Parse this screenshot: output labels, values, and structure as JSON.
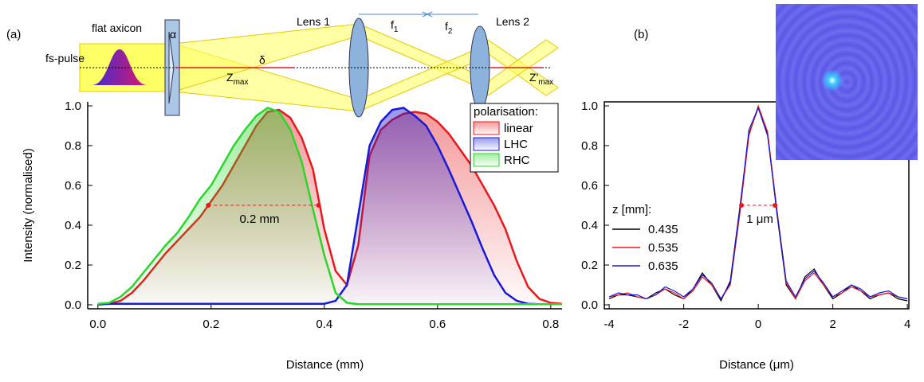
{
  "chart_data": [
    {
      "type": "line",
      "panel_label": "(a)",
      "x_label": "Distance (mm)",
      "y_label": "Intensity (normalised)",
      "x": [
        0,
        0.02,
        0.04,
        0.06,
        0.08,
        0.1,
        0.12,
        0.14,
        0.16,
        0.18,
        0.2,
        0.22,
        0.24,
        0.26,
        0.28,
        0.3,
        0.32,
        0.34,
        0.36,
        0.38,
        0.4,
        0.42,
        0.44,
        0.46,
        0.48,
        0.5,
        0.52,
        0.54,
        0.56,
        0.58,
        0.6,
        0.62,
        0.64,
        0.66,
        0.68,
        0.7,
        0.72,
        0.74,
        0.76,
        0.78,
        0.8,
        0.82
      ],
      "series": [
        {
          "name": "linear",
          "color": "#e8191c",
          "values": [
            0,
            0.005,
            0.02,
            0.06,
            0.12,
            0.19,
            0.26,
            0.32,
            0.38,
            0.44,
            0.52,
            0.6,
            0.7,
            0.8,
            0.9,
            0.97,
            0.98,
            0.94,
            0.84,
            0.68,
            0.38,
            0.17,
            0.1,
            0.3,
            0.75,
            0.88,
            0.93,
            0.96,
            0.97,
            0.96,
            0.92,
            0.86,
            0.78,
            0.7,
            0.6,
            0.5,
            0.38,
            0.22,
            0.09,
            0.03,
            0.01,
            0.005
          ]
        },
        {
          "name": "LHC",
          "color": "#1a1ad6",
          "values": [
            0.005,
            0.005,
            0.005,
            0.005,
            0.005,
            0.005,
            0.005,
            0.005,
            0.005,
            0.005,
            0.005,
            0.005,
            0.005,
            0.005,
            0.005,
            0.005,
            0.005,
            0.005,
            0.005,
            0.005,
            0.005,
            0.02,
            0.1,
            0.45,
            0.8,
            0.92,
            0.98,
            0.99,
            0.95,
            0.9,
            0.8,
            0.68,
            0.55,
            0.42,
            0.28,
            0.15,
            0.06,
            0.02,
            0.005,
            0.003,
            0.003,
            0.003
          ]
        },
        {
          "name": "RHC",
          "color": "#2ad62a",
          "values": [
            0.005,
            0.01,
            0.04,
            0.09,
            0.16,
            0.23,
            0.3,
            0.36,
            0.44,
            0.53,
            0.6,
            0.7,
            0.8,
            0.88,
            0.95,
            0.99,
            0.97,
            0.88,
            0.72,
            0.48,
            0.25,
            0.06,
            0.01,
            0.003,
            0.003,
            0.003,
            0.003,
            0.003,
            0.003,
            0.003,
            0.003,
            0.003,
            0.003,
            0.003,
            0.003,
            0.003,
            0.003,
            0.003,
            0.003,
            0.003,
            0.003,
            0.003
          ]
        }
      ],
      "fill": true,
      "frame": false,
      "xlim": [
        -0.018,
        0.82
      ],
      "xticks": [
        {
          "value": 0,
          "label": "0.0"
        },
        0.2,
        0.4,
        0.6,
        0.8
      ],
      "ylim": [
        -0.02,
        1.02
      ],
      "yticks": [
        {
          "value": 0,
          "label": "0.0"
        },
        0.2,
        0.4,
        0.6,
        0.8,
        {
          "value": 1,
          "label": "1.0"
        }
      ],
      "legend": {
        "title": "polarisation:",
        "position": "upper right"
      },
      "annotations": [
        {
          "text": "0.2 mm",
          "from": 0.195,
          "to": 0.39,
          "y": 0.5
        }
      ]
    },
    {
      "type": "line",
      "panel_label": "(b)",
      "x_label": "Distance (μm)",
      "x": [
        -4,
        -3.75,
        -3.5,
        -3.25,
        -3,
        -2.75,
        -2.5,
        -2.25,
        -2,
        -1.75,
        -1.5,
        -1.25,
        -1,
        -0.75,
        -0.5,
        -0.25,
        0,
        0.25,
        0.5,
        0.75,
        1,
        1.25,
        1.5,
        1.75,
        2,
        2.25,
        2.5,
        2.75,
        3,
        3.25,
        3.5,
        3.75,
        4
      ],
      "series": [
        {
          "name": "0.435",
          "color": "#000000",
          "values": [
            0.03,
            0.05,
            0.05,
            0.04,
            0.03,
            0.06,
            0.08,
            0.05,
            0.03,
            0.08,
            0.16,
            0.1,
            0.02,
            0.12,
            0.48,
            0.86,
            0.99,
            0.86,
            0.46,
            0.1,
            0.03,
            0.14,
            0.18,
            0.1,
            0.03,
            0.06,
            0.1,
            0.07,
            0.03,
            0.05,
            0.06,
            0.03,
            0.02
          ]
        },
        {
          "name": "0.535",
          "color": "#e8191c",
          "values": [
            0.04,
            0.05,
            0.06,
            0.04,
            0.03,
            0.05,
            0.08,
            0.06,
            0.03,
            0.07,
            0.14,
            0.1,
            0.03,
            0.1,
            0.45,
            0.85,
            1.0,
            0.87,
            0.48,
            0.11,
            0.03,
            0.12,
            0.16,
            0.1,
            0.04,
            0.06,
            0.09,
            0.07,
            0.04,
            0.05,
            0.06,
            0.04,
            0.03
          ]
        },
        {
          "name": "0.635",
          "color": "#1a1ad6",
          "values": [
            0.04,
            0.06,
            0.05,
            0.05,
            0.03,
            0.05,
            0.09,
            0.07,
            0.04,
            0.08,
            0.15,
            0.11,
            0.03,
            0.11,
            0.47,
            0.88,
            0.99,
            0.85,
            0.47,
            0.12,
            0.04,
            0.13,
            0.17,
            0.11,
            0.04,
            0.07,
            0.1,
            0.08,
            0.04,
            0.06,
            0.07,
            0.04,
            0.03
          ]
        }
      ],
      "fill": false,
      "frame": true,
      "xlim": [
        -4.13,
        4.04
      ],
      "xticks": [
        -4,
        -2,
        0,
        2,
        4
      ],
      "ylim": [
        -0.02,
        1.02
      ],
      "yticks": [
        {
          "value": 0,
          "label": "0.0"
        },
        0.2,
        0.4,
        0.6,
        0.8,
        {
          "value": 1,
          "label": "1.0"
        }
      ],
      "legend": {
        "title": "z [mm]:",
        "position": "left"
      },
      "annotations": [
        {
          "text": "1 μm",
          "from": -0.45,
          "to": 0.45,
          "y": 0.5
        }
      ]
    }
  ],
  "diagram": {
    "axicon": "flat axicon",
    "pulse": "fs-pulse",
    "alpha": "α",
    "delta": "δ",
    "z_max": {
      "main": "Z",
      "sub": "max"
    },
    "lens1": "Lens 1",
    "f1": {
      "main": "f",
      "sub": "1"
    },
    "f2": {
      "main": "f",
      "sub": "2"
    },
    "lens2": "Lens 2",
    "z_max2": {
      "main": "Z'",
      "sub": "max"
    }
  }
}
